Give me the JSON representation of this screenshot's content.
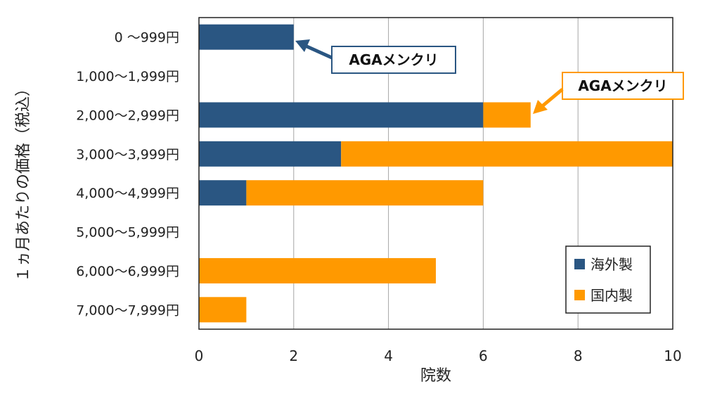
{
  "chart_data": {
    "type": "bar",
    "orientation": "horizontal",
    "stacked": true,
    "categories": [
      "0 ～999円",
      "1,000～1,999円",
      "2,000～2,999円",
      "3,000～3,999円",
      "4,000～4,999円",
      "5,000～5,999円",
      "6,000～6,999円",
      "7,000～7,999円"
    ],
    "series": [
      {
        "name": "海外製",
        "color": "#2a5682",
        "values": [
          2,
          0,
          6,
          3,
          1,
          0,
          0,
          0
        ]
      },
      {
        "name": "国内製",
        "color": "#ff9900",
        "values": [
          0,
          0,
          1,
          7,
          5,
          0,
          5,
          1
        ]
      }
    ],
    "xlabel": "院数",
    "ylabel": "１ヵ月あたりの価格（税込）",
    "xlim": [
      0,
      10
    ],
    "xticks": [
      "0",
      "2",
      "4",
      "6",
      "8",
      "10"
    ],
    "grid": "vertical",
    "legend": "bottom-right",
    "annotations": [
      {
        "text": "AGAメンクリ",
        "series": 0,
        "category": 0,
        "color": "#2a5682"
      },
      {
        "text": "AGAメンクリ",
        "series": 1,
        "category": 2,
        "color": "#ff9900"
      }
    ]
  }
}
